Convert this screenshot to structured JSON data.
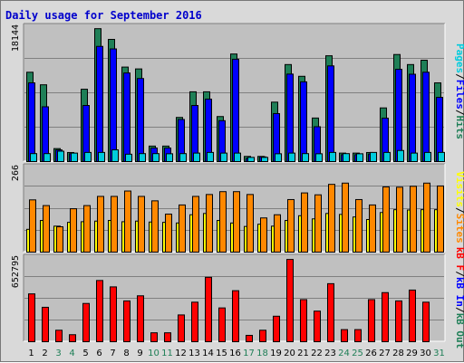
{
  "title": "Daily usage for September 2016",
  "colors": {
    "pages": "#00ccdd",
    "files": "#0000ff",
    "hits": "#1f7f57",
    "visits": "#ffff00",
    "sites": "#ff8800",
    "kb": "#ff0000",
    "kb_in": "#0000ff",
    "kb_out": "#1f7f57",
    "weekend_day": "#1f7f57",
    "weekday": "#000000",
    "panel_bg": "#c0c0c0"
  },
  "chart_data": [
    {
      "type": "bar",
      "ymax_label": "18144",
      "ylim": [
        0,
        18144
      ],
      "legend": [
        "Pages",
        "/",
        "Files",
        "/",
        "Hits"
      ],
      "categories": [
        "1",
        "2",
        "3",
        "4",
        "5",
        "6",
        "7",
        "8",
        "9",
        "10",
        "11",
        "12",
        "13",
        "14",
        "15",
        "16",
        "17",
        "18",
        "19",
        "20",
        "21",
        "22",
        "23",
        "24",
        "25",
        "26",
        "27",
        "28",
        "29",
        "30",
        "31"
      ],
      "series": [
        {
          "name": "Hits",
          "values": [
            12100,
            10400,
            1760,
            1230,
            9800,
            18000,
            16550,
            12800,
            12550,
            2100,
            2100,
            5980,
            9450,
            9450,
            6100,
            14570,
            700,
            700,
            8050,
            13140,
            11550,
            5900,
            14330,
            1150,
            1150,
            1230,
            7270,
            14500,
            13140,
            13730,
            10660
          ]
        },
        {
          "name": "Files",
          "values": [
            10660,
            7420,
            1580,
            1060,
            7600,
            15600,
            15260,
            12000,
            11250,
            1840,
            1840,
            5700,
            7600,
            8460,
            5540,
            13860,
            420,
            640,
            6500,
            11850,
            10800,
            4720,
            12960,
            930,
            930,
            1020,
            5880,
            12500,
            11830,
            12100,
            8700
          ]
        },
        {
          "name": "Pages",
          "values": [
            1080,
            1080,
            1410,
            1150,
            1240,
            1240,
            1590,
            1000,
            1080,
            1080,
            1060,
            1080,
            1150,
            1240,
            1150,
            1150,
            570,
            570,
            1060,
            1150,
            1080,
            1060,
            1240,
            1080,
            1060,
            1240,
            1240,
            1500,
            1150,
            1240,
            1240
          ]
        }
      ]
    },
    {
      "type": "bar",
      "ymax_label": "266",
      "ylim": [
        0,
        266
      ],
      "legend": [
        "Visits",
        "/",
        "Sites"
      ],
      "categories": [
        "1",
        "2",
        "3",
        "4",
        "5",
        "6",
        "7",
        "8",
        "9",
        "10",
        "11",
        "12",
        "13",
        "14",
        "15",
        "16",
        "17",
        "18",
        "19",
        "20",
        "21",
        "22",
        "23",
        "24",
        "25",
        "26",
        "27",
        "28",
        "29",
        "30",
        "31"
      ],
      "series": [
        {
          "name": "Sites",
          "values": [
            165,
            147,
            80,
            137,
            147,
            176,
            176,
            193,
            176,
            162,
            120,
            149,
            176,
            182,
            191,
            191,
            182,
            108,
            118,
            166,
            187,
            181,
            214,
            218,
            166,
            149,
            206,
            205,
            208,
            218,
            209
          ]
        },
        {
          "name": "Visits",
          "values": [
            72,
            100,
            82,
            94,
            96,
            98,
            100,
            96,
            98,
            95,
            94,
            92,
            118,
            122,
            100,
            92,
            81,
            88,
            82,
            100,
            115,
            105,
            122,
            119,
            111,
            103,
            125,
            134,
            133,
            134,
            134
          ]
        }
      ]
    },
    {
      "type": "bar",
      "ymax_label": "652795",
      "ylim": [
        0,
        652795
      ],
      "legend": [
        "kB F",
        "/",
        "kB In",
        "/",
        "kB Out"
      ],
      "categories": [
        "1",
        "2",
        "3",
        "4",
        "5",
        "6",
        "7",
        "8",
        "9",
        "10",
        "11",
        "12",
        "13",
        "14",
        "15",
        "16",
        "17",
        "18",
        "19",
        "20",
        "21",
        "22",
        "23",
        "24",
        "25",
        "26",
        "27",
        "28",
        "29",
        "30",
        "31"
      ],
      "series": [
        {
          "name": "kB F",
          "values": [
            375000,
            270000,
            90000,
            55000,
            300000,
            480000,
            430000,
            320000,
            360000,
            70000,
            70000,
            210000,
            310000,
            505000,
            265000,
            400000,
            50000,
            90000,
            200000,
            645000,
            330000,
            240000,
            455000,
            95000,
            95000,
            330000,
            385000,
            320000,
            405000,
            310000,
            0
          ]
        }
      ]
    }
  ],
  "x_tick_labels": [
    "1",
    "2",
    "3",
    "4",
    "5",
    "6",
    "7",
    "8",
    "9",
    "10",
    "11",
    "12",
    "13",
    "14",
    "15",
    "16",
    "17",
    "18",
    "19",
    "20",
    "21",
    "22",
    "23",
    "24",
    "25",
    "26",
    "27",
    "28",
    "29",
    "30",
    "31"
  ],
  "weekend_days": [
    "3",
    "4",
    "10",
    "11",
    "17",
    "18",
    "24",
    "25",
    "31"
  ]
}
